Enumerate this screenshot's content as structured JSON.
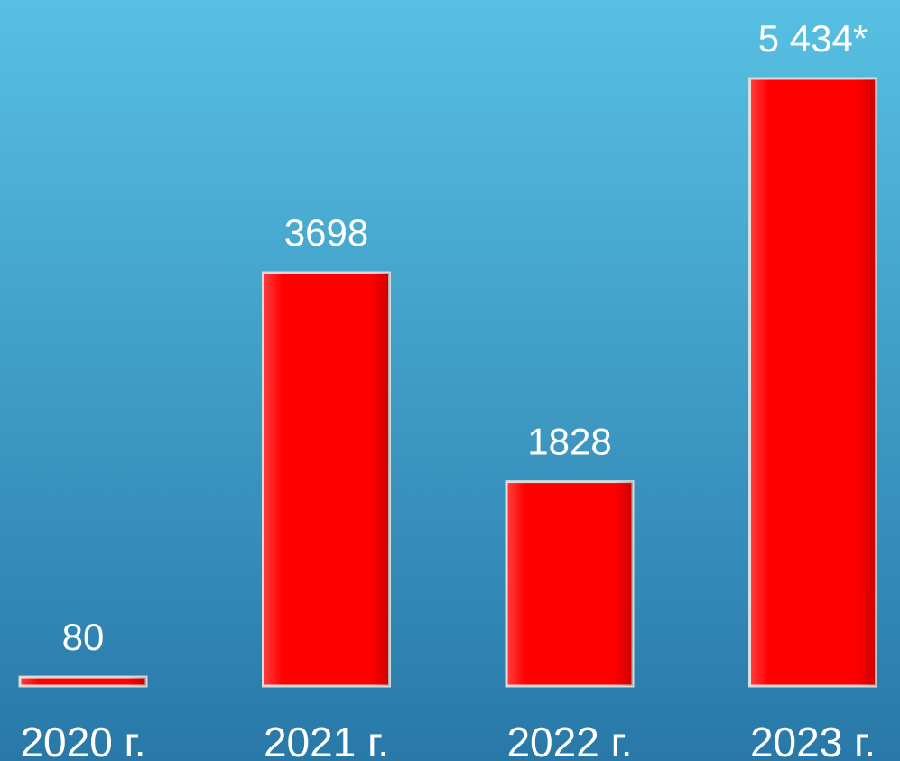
{
  "chart_data": {
    "type": "bar",
    "categories": [
      "2020 г.",
      "2021 г.",
      "2022 г.",
      "2023 г."
    ],
    "values": [
      80,
      3698,
      1828,
      5434
    ],
    "value_labels": [
      "80",
      "3698",
      "1828",
      "5 434*"
    ],
    "color": "#ff0000"
  }
}
